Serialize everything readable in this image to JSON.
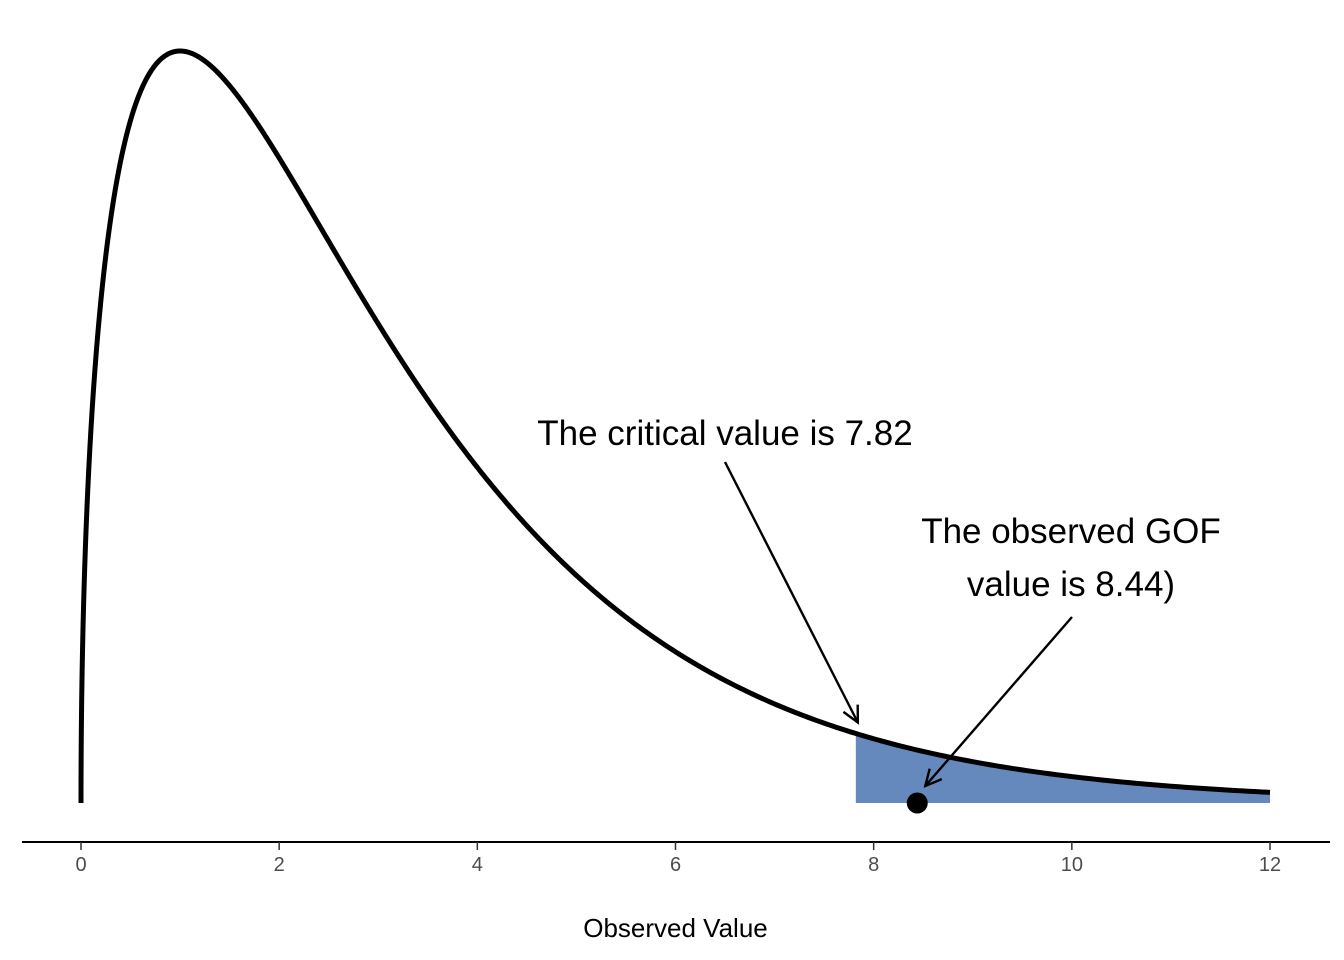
{
  "chart_data": {
    "type": "area",
    "distribution": "chi-square",
    "degrees_of_freedom": 3,
    "xlabel": "Observed Value",
    "ylabel": "",
    "xlim": [
      0,
      12
    ],
    "x_ticks": [
      0,
      2,
      4,
      6,
      8,
      10,
      12
    ],
    "grid": false,
    "shaded_region": {
      "from": 7.82,
      "to": 12,
      "color": "#6689bd"
    },
    "curve_color": "#000000",
    "observed_point": {
      "x": 8.44,
      "y": 0
    },
    "annotations": [
      {
        "id": "critical",
        "lines": [
          "The critical value is 7.82"
        ],
        "points_to_x": 7.82
      },
      {
        "id": "observed",
        "lines": [
          "The observed GOF",
          "value is 8.44)"
        ],
        "points_to_x": 8.44
      }
    ]
  }
}
